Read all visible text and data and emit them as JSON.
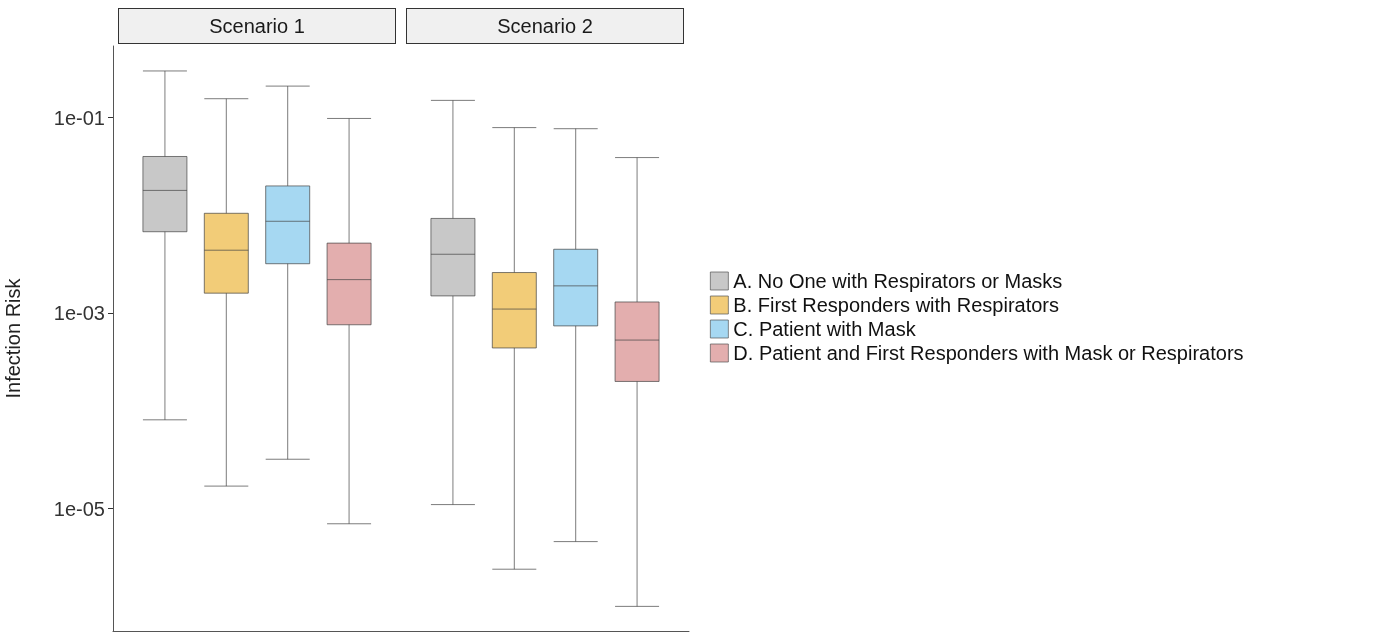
{
  "chart_data": {
    "type": "box",
    "ylabel": "Infection Risk",
    "categories": [
      "Scenario 1",
      "Scenario 2"
    ],
    "log": true,
    "ylim": [
      5.6e-07,
      0.54
    ],
    "yticks": [
      {
        "value": 0.1,
        "label": "1e-01"
      },
      {
        "value": 0.001,
        "label": "1e-03"
      },
      {
        "value": 1e-05,
        "label": "1e-05"
      }
    ],
    "grid": false,
    "legend": "right",
    "series": [
      {
        "name": "A. No One with Respirators or Masks",
        "color": "#c8c8c8",
        "boxes": [
          {
            "low": 8.1e-05,
            "q1": 0.0068,
            "median": 0.018,
            "q3": 0.04,
            "high": 0.3
          },
          {
            "low": 1.1e-05,
            "q1": 0.0015,
            "median": 0.004,
            "q3": 0.0093,
            "high": 0.15
          }
        ]
      },
      {
        "name": "B. First Responders with Respirators",
        "color": "#f2cc78",
        "boxes": [
          {
            "low": 1.7e-05,
            "q1": 0.0016,
            "median": 0.0044,
            "q3": 0.0105,
            "high": 0.156
          },
          {
            "low": 2.4e-06,
            "q1": 0.00044,
            "median": 0.0011,
            "q3": 0.0026,
            "high": 0.079
          }
        ]
      },
      {
        "name": "C. Patient with Mask",
        "color": "#a6d8f2",
        "boxes": [
          {
            "low": 3.2e-05,
            "q1": 0.0032,
            "median": 0.0087,
            "q3": 0.02,
            "high": 0.21
          },
          {
            "low": 4.6e-06,
            "q1": 0.00074,
            "median": 0.0019,
            "q3": 0.0045,
            "high": 0.077
          }
        ]
      },
      {
        "name": "D. Patient and First Responders with Mask or Respirators",
        "color": "#e3aeae",
        "boxes": [
          {
            "low": 7e-06,
            "q1": 0.00076,
            "median": 0.0022,
            "q3": 0.0052,
            "high": 0.098
          },
          {
            "low": 1e-06,
            "q1": 0.0002,
            "median": 0.00053,
            "q3": 0.0013,
            "high": 0.039
          }
        ]
      }
    ]
  }
}
